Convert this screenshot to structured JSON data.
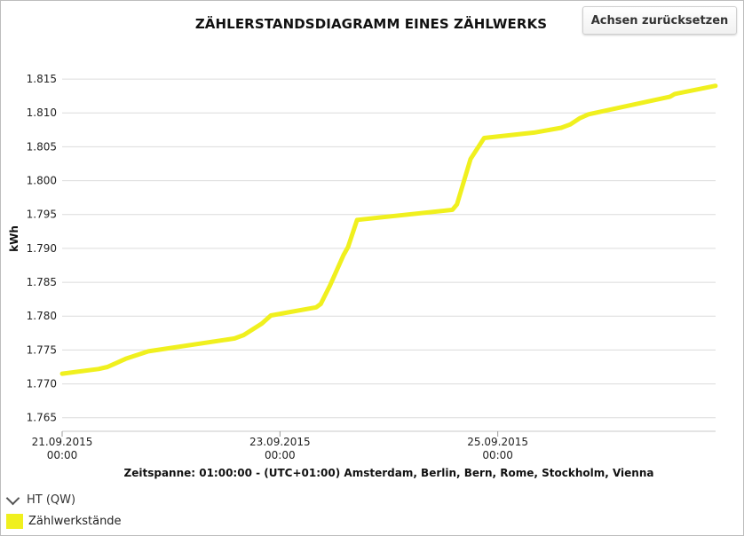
{
  "toolbar": {
    "reset_label": "Achsen zurücksetzen"
  },
  "legend": {
    "group_label": "HT (QW)",
    "items": [
      {
        "label": "Zählwerkstände",
        "color": "#f0f01e"
      }
    ]
  },
  "chart_data": {
    "type": "line",
    "title": "ZÄHLERSTANDSDIAGRAMM EINES ZÄHLWERKS",
    "ylabel": "kWh",
    "xlabel": "Zeitspanne: 01:00:00 - (UTC+01:00) Amsterdam, Berlin, Bern, Rome, Stockholm, Vienna",
    "ylim": [
      1.763,
      1.8175
    ],
    "xlim": [
      "2015-09-21 00:00",
      "2015-09-27 00:00"
    ],
    "yticks": [
      "1.765",
      "1.770",
      "1.775",
      "1.780",
      "1.785",
      "1.790",
      "1.795",
      "1.800",
      "1.805",
      "1.810",
      "1.815"
    ],
    "xticks": [
      {
        "date": "21.09.2015",
        "time": "00:00",
        "x": "2015-09-21 00:00"
      },
      {
        "date": "23.09.2015",
        "time": "00:00",
        "x": "2015-09-23 00:00"
      },
      {
        "date": "25.09.2015",
        "time": "00:00",
        "x": "2015-09-25 00:00"
      }
    ],
    "grid": true,
    "legend_position": "bottom-left",
    "series": [
      {
        "name": "Zählwerkstände",
        "color": "#f0f01e",
        "x": [
          "2015-09-21 00:00",
          "2015-09-21 08:00",
          "2015-09-21 10:00",
          "2015-09-21 14:00",
          "2015-09-21 19:00",
          "2015-09-22 14:00",
          "2015-09-22 16:00",
          "2015-09-22 20:00",
          "2015-09-22 22:00",
          "2015-09-23 08:00",
          "2015-09-23 09:00",
          "2015-09-23 11:00",
          "2015-09-23 14:00",
          "2015-09-23 15:00",
          "2015-09-23 17:00",
          "2015-09-24 14:00",
          "2015-09-24 15:00",
          "2015-09-24 18:00",
          "2015-09-24 21:00",
          "2015-09-25 08:00",
          "2015-09-25 14:00",
          "2015-09-25 16:00",
          "2015-09-25 18:00",
          "2015-09-25 20:00",
          "2015-09-26 14:00",
          "2015-09-26 15:00",
          "2015-09-26 23:59"
        ],
        "values": [
          1.7715,
          1.7722,
          1.7725,
          1.7737,
          1.7748,
          1.7767,
          1.7772,
          1.7789,
          1.7801,
          1.7813,
          1.7818,
          1.7845,
          1.789,
          1.7902,
          1.7942,
          1.7957,
          1.7965,
          1.8032,
          1.8063,
          1.8071,
          1.8078,
          1.8083,
          1.8092,
          1.8098,
          1.8124,
          1.8128,
          1.814
        ]
      }
    ]
  }
}
